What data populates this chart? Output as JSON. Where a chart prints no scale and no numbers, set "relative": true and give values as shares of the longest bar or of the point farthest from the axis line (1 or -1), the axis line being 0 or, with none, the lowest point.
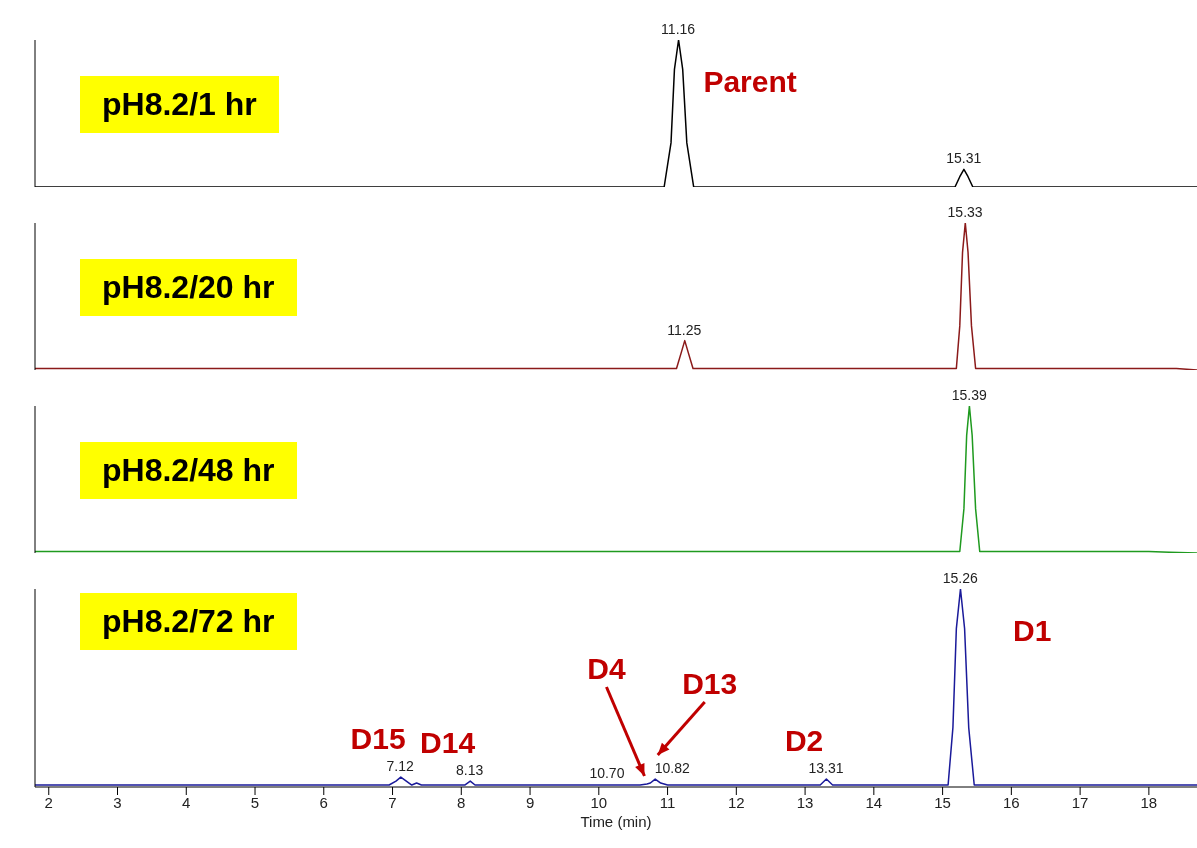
{
  "chart_data": [
    {
      "type": "line",
      "title": "pH8.2/1 hr",
      "relative": true,
      "xlim": [
        1.8,
        18.7
      ],
      "tick_labels": false,
      "annotations": [
        {
          "text": "11.16",
          "x": 11.16,
          "y": 1
        },
        {
          "text": "Parent",
          "x": 11.16,
          "y": 1
        },
        {
          "text": "15.31",
          "x": 15.31,
          "y": 0.12
        }
      ],
      "series": [
        {
          "color": "#000000",
          "x": [
            1.8,
            10.95,
            11.05,
            11.1,
            11.16,
            11.22,
            11.28,
            11.38,
            15.18,
            15.25,
            15.31,
            15.37,
            15.44,
            18.7
          ],
          "values": [
            0,
            0,
            0.3,
            0.8,
            1,
            0.8,
            0.3,
            0,
            0,
            0.07,
            0.12,
            0.07,
            0,
            0
          ]
        }
      ]
    },
    {
      "type": "line",
      "title": "pH8.2/20 hr",
      "relative": true,
      "xlim": [
        1.8,
        18.7
      ],
      "tick_labels": false,
      "annotations": [
        {
          "text": "11.25",
          "x": 11.25,
          "y": 0.2
        },
        {
          "text": "15.33",
          "x": 15.33,
          "y": 1
        }
      ],
      "series": [
        {
          "color": "#8b1a1a",
          "x": [
            1.8,
            11.13,
            11.2,
            11.25,
            11.3,
            11.37,
            15.2,
            15.25,
            15.29,
            15.33,
            15.37,
            15.42,
            15.48,
            18.4,
            18.7
          ],
          "values": [
            0.01,
            0.01,
            0.12,
            0.2,
            0.12,
            0.01,
            0.01,
            0.3,
            0.8,
            1,
            0.8,
            0.3,
            0.01,
            0.01,
            0
          ]
        }
      ]
    },
    {
      "type": "line",
      "title": "pH8.2/48 hr",
      "relative": true,
      "xlim": [
        1.8,
        18.7
      ],
      "tick_labels": false,
      "annotations": [
        {
          "text": "15.39",
          "x": 15.39,
          "y": 1
        }
      ],
      "series": [
        {
          "color": "#1f9a1f",
          "x": [
            1.8,
            15.25,
            15.31,
            15.35,
            15.39,
            15.43,
            15.48,
            15.54,
            18.0,
            18.3,
            18.7
          ],
          "values": [
            0.01,
            0.01,
            0.3,
            0.8,
            1,
            0.8,
            0.3,
            0.01,
            0.01,
            0.005,
            0
          ]
        }
      ]
    },
    {
      "type": "line",
      "title": "pH8.2/72 hr",
      "relative": true,
      "xlim": [
        1.8,
        18.7
      ],
      "xticks": [
        2,
        3,
        4,
        5,
        6,
        7,
        8,
        9,
        10,
        11,
        12,
        13,
        14,
        15,
        16,
        17,
        18
      ],
      "xlabel": "Time (min)",
      "tick_labels": "x",
      "annotations": [
        {
          "text": "7.12",
          "x": 7.12,
          "y": 0.05
        },
        {
          "text": "D15",
          "x": 7.12,
          "y": 0.05
        },
        {
          "text": "8.13",
          "x": 8.13,
          "y": 0.03
        },
        {
          "text": "D14",
          "x": 8.13,
          "y": 0.03
        },
        {
          "text": "10.70",
          "x": 10.7,
          "y": 0.015
        },
        {
          "text": "D4",
          "x": 10.7,
          "y": 0.015
        },
        {
          "text": "10.82",
          "x": 10.82,
          "y": 0.04
        },
        {
          "text": "D13",
          "x": 10.82,
          "y": 0.04
        },
        {
          "text": "13.31",
          "x": 13.31,
          "y": 0.04
        },
        {
          "text": "D2",
          "x": 13.31,
          "y": 0.04
        },
        {
          "text": "15.26",
          "x": 15.26,
          "y": 1
        },
        {
          "text": "D1",
          "x": 15.26,
          "y": 1
        }
      ],
      "series": [
        {
          "color": "#1a1a9a",
          "x": [
            1.8,
            6.95,
            7.05,
            7.12,
            7.2,
            7.28,
            7.35,
            7.42,
            8.05,
            8.13,
            8.2,
            10.6,
            10.7,
            10.75,
            10.82,
            10.9,
            11.0,
            13.22,
            13.31,
            13.4,
            15.08,
            15.15,
            15.2,
            15.26,
            15.32,
            15.38,
            15.46,
            18.7
          ],
          "values": [
            0.01,
            0.01,
            0.03,
            0.05,
            0.03,
            0.01,
            0.02,
            0.01,
            0.01,
            0.03,
            0.01,
            0.01,
            0.015,
            0.02,
            0.04,
            0.02,
            0.01,
            0.01,
            0.04,
            0.01,
            0.01,
            0.3,
            0.8,
            1,
            0.8,
            0.3,
            0.01,
            0.01
          ]
        }
      ]
    }
  ]
}
